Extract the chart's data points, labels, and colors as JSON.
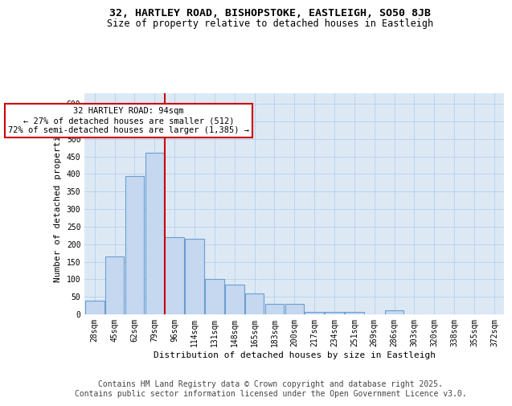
{
  "title_line1": "32, HARTLEY ROAD, BISHOPSTOKE, EASTLEIGH, SO50 8JB",
  "title_line2": "Size of property relative to detached houses in Eastleigh",
  "xlabel": "Distribution of detached houses by size in Eastleigh",
  "ylabel": "Number of detached properties",
  "categories": [
    "28sqm",
    "45sqm",
    "62sqm",
    "79sqm",
    "96sqm",
    "114sqm",
    "131sqm",
    "148sqm",
    "165sqm",
    "183sqm",
    "200sqm",
    "217sqm",
    "234sqm",
    "251sqm",
    "269sqm",
    "286sqm",
    "303sqm",
    "320sqm",
    "338sqm",
    "355sqm",
    "372sqm"
  ],
  "bar_heights": [
    40,
    165,
    395,
    460,
    220,
    215,
    100,
    85,
    60,
    30,
    30,
    8,
    8,
    8,
    0,
    12,
    0,
    0,
    0,
    0,
    0
  ],
  "bar_color": "#c5d8f0",
  "bar_edge_color": "#6a9ecf",
  "vline_color": "#cc0000",
  "vline_x": 3.5,
  "annotation_text": "32 HARTLEY ROAD: 94sqm\n← 27% of detached houses are smaller (512)\n72% of semi-detached houses are larger (1,385) →",
  "annotation_box_edgecolor": "#cc0000",
  "annotation_facecolor": "#ffffff",
  "ylim": [
    0,
    630
  ],
  "yticks": [
    0,
    50,
    100,
    150,
    200,
    250,
    300,
    350,
    400,
    450,
    500,
    550,
    600
  ],
  "bg_color": "#dce9f5",
  "grid_color": "#b8cfe8",
  "footer": "Contains HM Land Registry data © Crown copyright and database right 2025.\nContains public sector information licensed under the Open Government Licence v3.0.",
  "footer_fontsize": 7,
  "title_fontsize": 9.5,
  "subtitle_fontsize": 8.5,
  "axis_label_fontsize": 8,
  "tick_fontsize": 7,
  "annotation_fontsize": 7.5
}
